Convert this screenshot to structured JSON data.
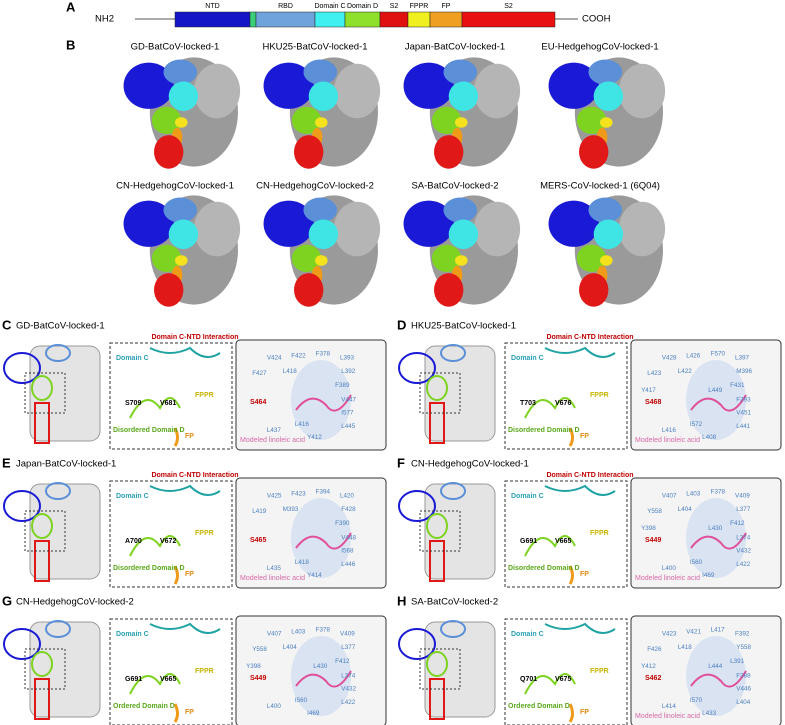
{
  "panel_a": {
    "letter": "A",
    "n_term": "NH2",
    "c_term": "COOH",
    "domains": [
      "NTD",
      "RBD",
      "Domain C",
      "Domain D",
      "S2",
      "FPPR",
      "FP",
      "S2"
    ]
  },
  "panel_b": {
    "letter": "B",
    "structures": [
      "GD-BatCoV-locked-1",
      "HKU25-BatCoV-locked-1",
      "Japan-BatCoV-locked-1",
      "EU-HedgehogCoV-locked-1",
      "CN-HedgehogCoV-locked-1",
      "CN-HedgehogCoV-locked-2",
      "SA-BatCoV-locked-2",
      "MERS-CoV-locked-1 (6Q04)"
    ]
  },
  "panels": [
    {
      "letter": "C",
      "title": "GD-BatCoV-locked-1",
      "interaction": "Domain C-NTD Interaction",
      "domain_c": "Domain C",
      "fppr": "FPPR",
      "residue_a": "S709",
      "residue_b": "V681",
      "domain_d": "Disordered Domain D",
      "fp": "FP",
      "ligand_site": "S464",
      "ligand": "Modeled linoleic acid",
      "residues": [
        "V424",
        "F422",
        "F378",
        "L393",
        "F427",
        "L418",
        "L392",
        "F389",
        "V447",
        "I577",
        "L416",
        "L437",
        "Y412",
        "L445"
      ]
    },
    {
      "letter": "D",
      "title": "HKU25-BatCoV-locked-1",
      "interaction": "Domain C-NTD Interaction",
      "domain_c": "Domain C",
      "fppr": "FPPR",
      "residue_a": "T703",
      "residue_b": "V676",
      "domain_d": "Disordered Domain D",
      "fp": "FP",
      "ligand_site": "S468",
      "ligand": "Modeled linoleic acid",
      "residues": [
        "V428",
        "L426",
        "F570",
        "L397",
        "L423",
        "L422",
        "M396",
        "F431",
        "F393",
        "V451",
        "I572",
        "L416",
        "L408",
        "L441",
        "Y417",
        "L449"
      ]
    },
    {
      "letter": "E",
      "title": "Japan-BatCoV-locked-1",
      "interaction": "Domain C-NTD Interaction",
      "domain_c": "Domain C",
      "fppr": "FPPR",
      "residue_a": "A700",
      "residue_b": "V672",
      "domain_d": "Disordered Domain D",
      "fp": "FP",
      "ligand_site": "S465",
      "ligand": "Modeled linoleic acid",
      "residues": [
        "V425",
        "F423",
        "F394",
        "L420",
        "L419",
        "M393",
        "F428",
        "F390",
        "V448",
        "I568",
        "L418",
        "L435",
        "Y414",
        "L446"
      ]
    },
    {
      "letter": "F",
      "title": "CN-HedgehogCoV-locked-1",
      "interaction": "Domain C-NTD Interaction",
      "domain_c": "Domain C",
      "fppr": "FPPR",
      "residue_a": "G691",
      "residue_b": "V665",
      "domain_d": "Disordered Domain D",
      "fp": "FP",
      "ligand_site": "S449",
      "ligand": "Modeled linoleic acid",
      "residues": [
        "V407",
        "L403",
        "F378",
        "V409",
        "Y558",
        "L404",
        "L377",
        "F412",
        "L374",
        "V432",
        "I560",
        "L400",
        "I469",
        "L422",
        "Y398",
        "L430"
      ]
    },
    {
      "letter": "G",
      "title": "CN-HedgehogCoV-locked-2",
      "domain_c": "Domain C",
      "fppr": "FPPR",
      "residue_a": "G691",
      "residue_b": "V665",
      "domain_d": "Ordered Domain D",
      "fp": "FP",
      "ligand_site": "S449",
      "residues": [
        "V407",
        "L403",
        "F378",
        "V409",
        "Y558",
        "L404",
        "L377",
        "F412",
        "L374",
        "V432",
        "I560",
        "L400",
        "I469",
        "L422",
        "Y398",
        "L430"
      ]
    },
    {
      "letter": "H",
      "title": "SA-BatCoV-locked-2",
      "domain_c": "Domain C",
      "fppr": "FPPR",
      "residue_a": "Q701",
      "residue_b": "V675",
      "domain_d": "Ordered Domain D",
      "fp": "FP",
      "ligand_site": "S462",
      "ligand": "Modeled linoleic acid",
      "residues": [
        "V423",
        "V421",
        "L417",
        "F392",
        "F426",
        "L418",
        "Y558",
        "L391",
        "F388",
        "V446",
        "I570",
        "L414",
        "L433",
        "L404",
        "Y412",
        "L444"
      ]
    }
  ]
}
